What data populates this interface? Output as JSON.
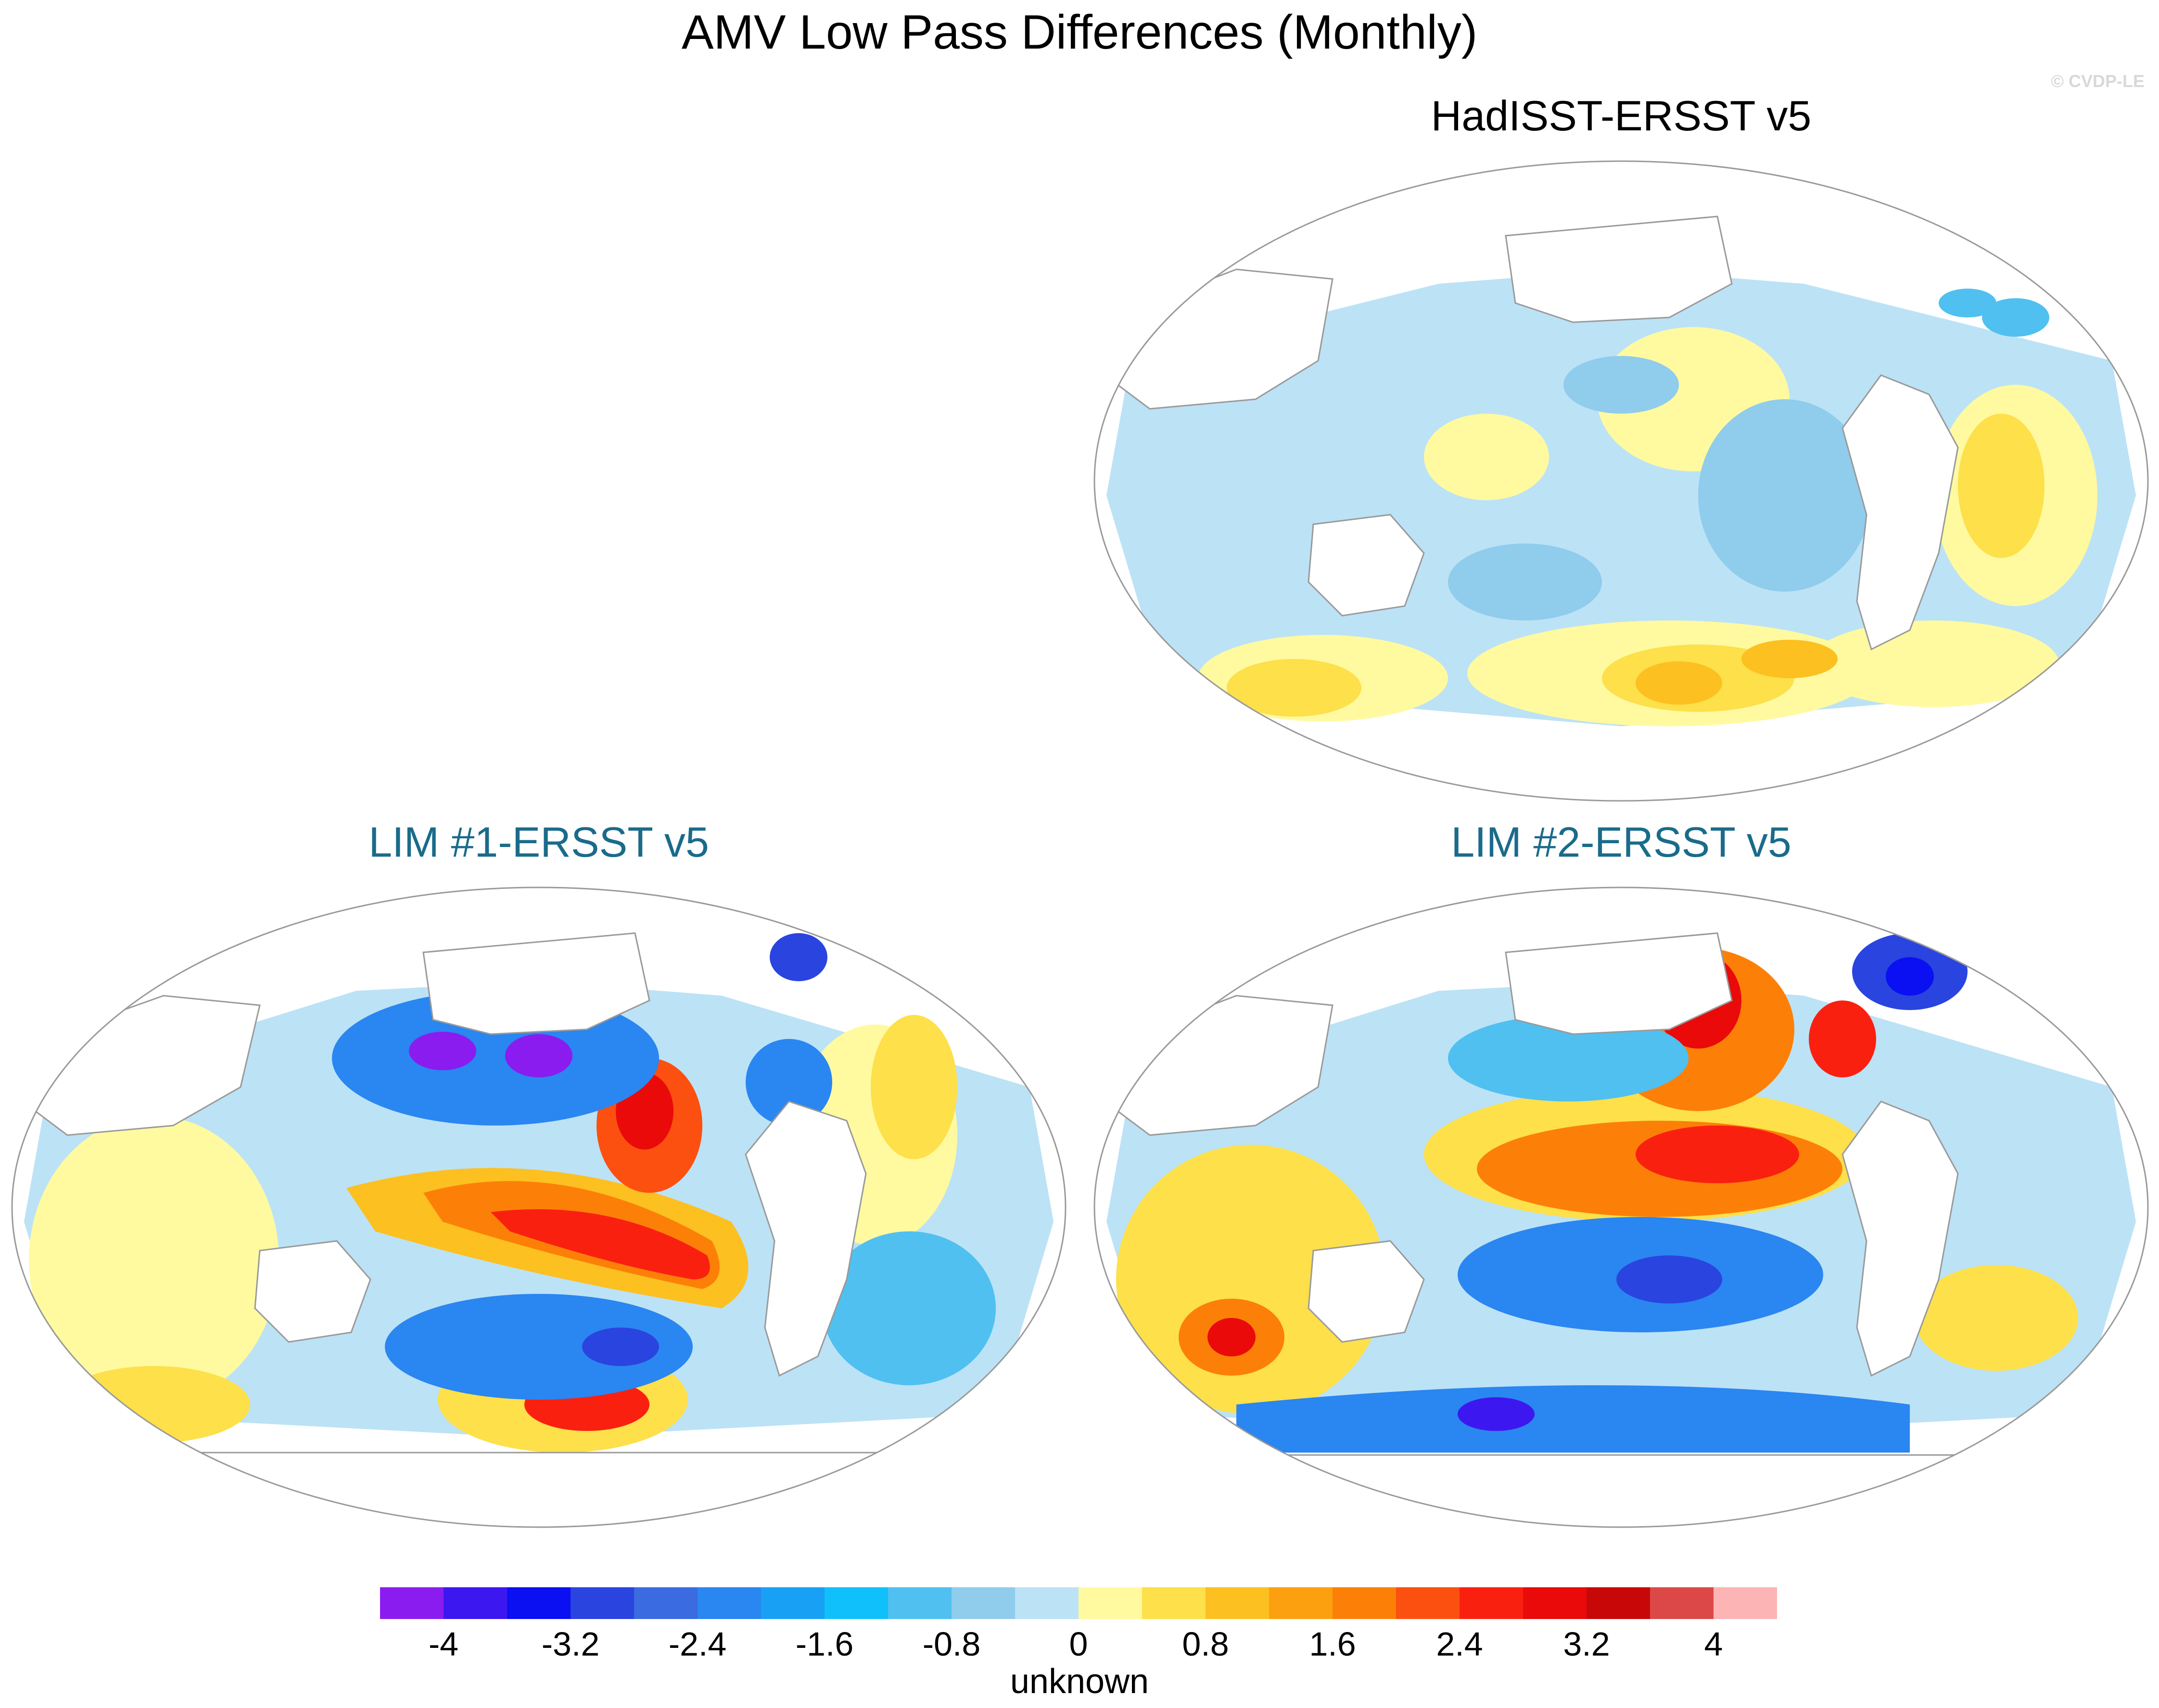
{
  "title": "AMV Low Pass Differences (Monthly)",
  "watermark": "© CVDP-LE",
  "panels": [
    {
      "title": "HadISST-ERSST v5",
      "color": "#000000"
    },
    {
      "title": "LIM #1-ERSST v5",
      "color": "#1a6b8a"
    },
    {
      "title": "LIM #2-ERSST v5",
      "color": "#1a6b8a"
    }
  ],
  "colorbar": {
    "colors": [
      "#8a1cf0",
      "#3d17f0",
      "#0a10f2",
      "#2a44e0",
      "#3a6be0",
      "#2a86f0",
      "#18a0f5",
      "#10c0fa",
      "#50c0f0",
      "#90ccec",
      "#bce2f6",
      "#fffaa0",
      "#fde04a",
      "#fcc020",
      "#fca010",
      "#fc8008",
      "#fc5010",
      "#fa2010",
      "#ea0a0a",
      "#c80808",
      "#dc4848",
      "#fcb4b4"
    ],
    "tick_labels": [
      "-4",
      "-3.2",
      "-2.4",
      "-1.6",
      "-0.8",
      "0",
      "0.8",
      "1.6",
      "2.4",
      "3.2",
      "4"
    ],
    "unit_label": "unknown"
  }
}
